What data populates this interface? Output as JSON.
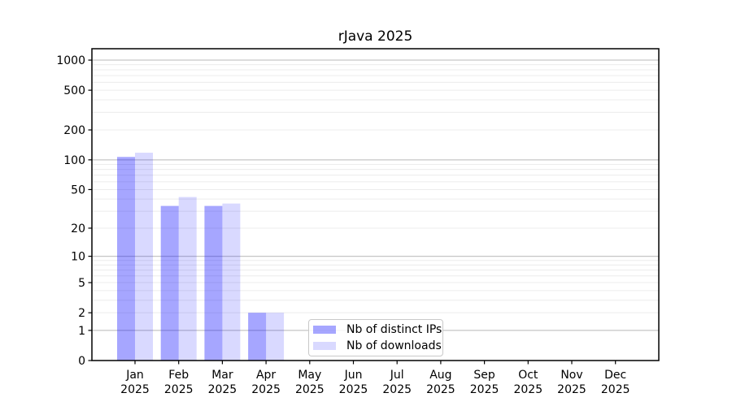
{
  "chart_data": {
    "type": "bar",
    "title": "rJava 2025",
    "categories": [
      "Jan",
      "Feb",
      "Mar",
      "Apr",
      "May",
      "Jun",
      "Jul",
      "Aug",
      "Sep",
      "Oct",
      "Nov",
      "Dec"
    ],
    "category_year": "2025",
    "series": [
      {
        "name": "Nb of distinct IPs",
        "color": "rgba(0,0,255,0.35)",
        "values": [
          107,
          34,
          34,
          2,
          0,
          0,
          0,
          0,
          0,
          0,
          0,
          0
        ]
      },
      {
        "name": "Nb of downloads",
        "color": "rgba(0,0,255,0.15)",
        "values": [
          118,
          42,
          36,
          2,
          0,
          0,
          0,
          0,
          0,
          0,
          0,
          0
        ]
      }
    ],
    "yscale": "log1p",
    "ylim": [
      0,
      1300
    ],
    "yticks": [
      0,
      1,
      2,
      5,
      10,
      20,
      50,
      100,
      200,
      500,
      1000
    ],
    "xlabel": "",
    "ylabel": "",
    "grid": "horizontal",
    "grid_major_color": "#c6c6c6",
    "grid_minor_color": "#ececec",
    "axis_color": "#000000",
    "legend_position": "lower-center"
  }
}
